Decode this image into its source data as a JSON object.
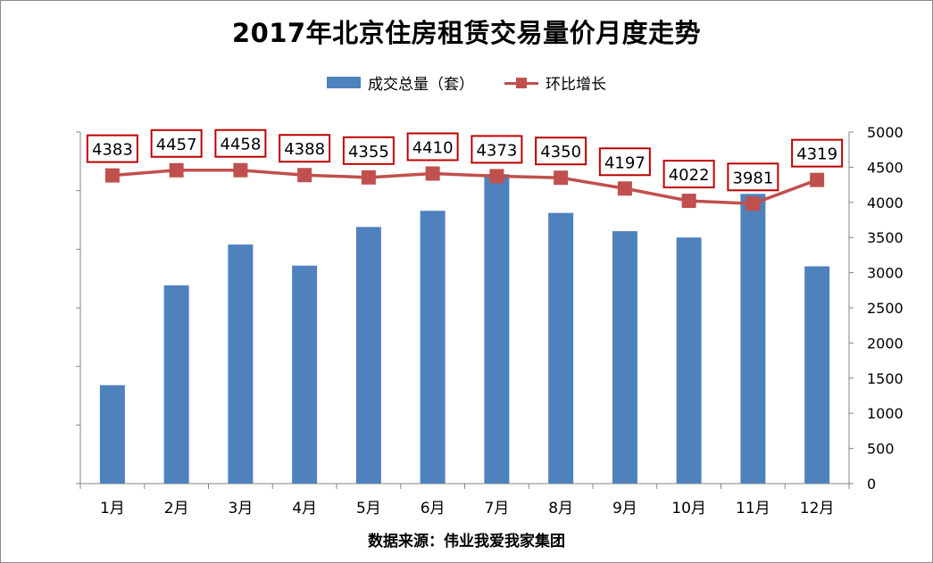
{
  "title": "2017年北京住房租赁交易量价月度走势",
  "source": "数据来源：伟业我爱我家集团",
  "chart_data": {
    "type": "bar",
    "categories": [
      "1月",
      "2月",
      "3月",
      "4月",
      "5月",
      "6月",
      "7月",
      "8月",
      "9月",
      "10月",
      "11月",
      "12月"
    ],
    "series": [
      {
        "name": "成交总量（套）",
        "type": "bar",
        "axis": "left",
        "color": "#4f81bd",
        "values": [
          1400,
          2820,
          3400,
          3100,
          3650,
          3880,
          4400,
          3850,
          3590,
          3500,
          4120,
          3090
        ]
      },
      {
        "name": "环比增长",
        "type": "line",
        "axis": "right",
        "color": "#c0504d",
        "values": [
          4383,
          4457,
          4458,
          4388,
          4355,
          4410,
          4373,
          4350,
          4197,
          4022,
          3981,
          4319
        ],
        "labels": [
          "4383",
          "4457",
          "4458",
          "4388",
          "4355",
          "4410",
          "4373",
          "4350",
          "4197",
          "4022",
          "3981",
          "4319"
        ]
      }
    ],
    "y2_ticks": [
      "0",
      "500",
      "1000",
      "1500",
      "2000",
      "2500",
      "3000",
      "3500",
      "4000",
      "4500",
      "5000"
    ],
    "ylim": [
      0,
      5000
    ],
    "y2lim": [
      0,
      5000
    ],
    "legend_position": "top",
    "grid": false
  }
}
